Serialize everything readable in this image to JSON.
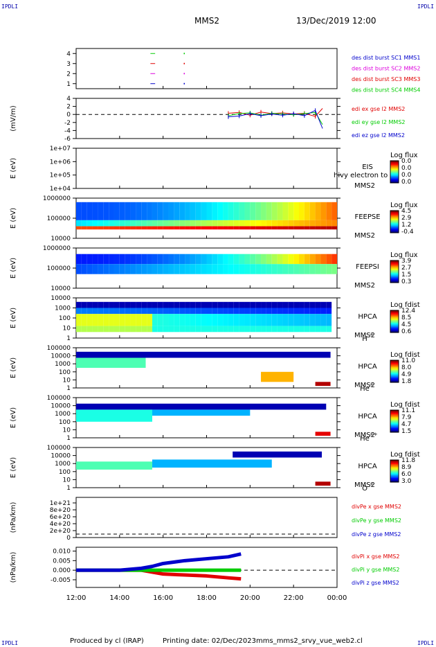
{
  "header": {
    "corner_label": "IPDLI",
    "spacecraft": "MMS2",
    "datetime": "13/Dec/2019 12:00"
  },
  "footer": {
    "produced_by": "Produced by cl (IRAP)",
    "printing_date": "Printing date: 02/Dec/2023",
    "filename": "mms_mms2_srvy_vue_web2.cl"
  },
  "colors": {
    "red": "#e00000",
    "green": "#00cc00",
    "blue": "#0000cc",
    "magenta": "#dd00dd"
  },
  "chart_data": [
    {
      "type": "line",
      "id": "burst",
      "ylim": [
        0.5,
        4.5
      ],
      "yticks": [
        "1",
        "2",
        "3",
        "4"
      ],
      "legend": [
        {
          "label": "des dist burst SC1 MMS1",
          "color": "#0000cc"
        },
        {
          "label": "des dist burst SC2 MMS2",
          "color": "#dd00dd"
        },
        {
          "label": "des dist burst SC3 MMS3",
          "color": "#e00000"
        },
        {
          "label": "des dist burst SC4 MMS4",
          "color": "#00cc00"
        }
      ],
      "series": [
        {
          "name": "des dist burst SC1 MMS1",
          "y": 1,
          "x": [
            "15:25",
            "15:38"
          ],
          "color": "#0000cc"
        },
        {
          "name": "des dist burst SC2 MMS2",
          "y": 2,
          "x": [
            "15:25",
            "15:38"
          ],
          "color": "#dd00dd"
        },
        {
          "name": "des dist burst SC3 MMS3",
          "y": 3,
          "x": [
            "15:25",
            "15:38"
          ],
          "color": "#e00000"
        },
        {
          "name": "des dist burst SC4 MMS4",
          "y": 4,
          "x": [
            "15:25",
            "15:38"
          ],
          "color": "#00cc00"
        }
      ]
    },
    {
      "type": "line",
      "id": "edi",
      "ylabel": "(mV/m)",
      "ylim": [
        -6,
        4
      ],
      "yticks": [
        "4",
        "2",
        "0",
        "-2",
        "-4",
        "-6"
      ],
      "legend": [
        {
          "label": "edi ex gse l2 MMS2",
          "color": "#e00000"
        },
        {
          "label": "edi ey gse l2 MMS2",
          "color": "#00cc00"
        },
        {
          "label": "edi ez gse l2 MMS2",
          "color": "#0000cc"
        }
      ],
      "x_range_hours": [
        18.75,
        23.4
      ],
      "series": [
        {
          "name": "edi ex gse l2 MMS2",
          "color": "#e00000",
          "x": [
            "19:00",
            "19:30",
            "20:00",
            "20:30",
            "21:00",
            "21:30",
            "22:00",
            "22:30",
            "23:00",
            "23:20"
          ],
          "y": [
            0.3,
            0.5,
            -0.2,
            0.6,
            0.2,
            0.4,
            0.1,
            0.3,
            -0.5,
            1.5
          ]
        },
        {
          "name": "edi ey gse l2 MMS2",
          "color": "#00cc00",
          "x": [
            "19:00",
            "19:30",
            "20:00",
            "20:30",
            "21:00",
            "21:30",
            "22:00",
            "22:30",
            "23:00",
            "23:20"
          ],
          "y": [
            -0.3,
            0.2,
            0.4,
            -0.2,
            0.3,
            0.1,
            -0.1,
            0.2,
            0.5,
            -2.5
          ]
        },
        {
          "name": "edi ez gse l2 MMS2",
          "color": "#0000cc",
          "x": [
            "19:00",
            "19:30",
            "20:00",
            "20:30",
            "21:00",
            "21:30",
            "22:00",
            "22:30",
            "23:00",
            "23:20"
          ],
          "y": [
            -0.6,
            -0.4,
            0.2,
            -0.3,
            0.1,
            -0.2,
            0.2,
            -0.3,
            1.0,
            -3.5
          ]
        }
      ]
    },
    {
      "type": "heatmap",
      "id": "eis",
      "ylabel": "E (eV)",
      "yticks": [
        "1e+07",
        "1e+06",
        "1e+05",
        "1e+04"
      ],
      "instrument": "EIS",
      "instrument_sc": "MMS2",
      "overlay_text": "hivy electron to",
      "colorbar_label": "Log flux",
      "colorbar_ticks": [
        "0.0",
        "0.0",
        "0.0",
        "0.0"
      ]
    },
    {
      "type": "heatmap",
      "id": "feepse",
      "ylabel": "E (eV)",
      "yticks": [
        "1000000",
        "100000",
        "10000"
      ],
      "instrument": "FEEPSE",
      "instrument_sc": "MMS2",
      "colorbar_label": "Log flux",
      "colorbar_ticks": [
        "4.5",
        "2.9",
        "1.2",
        "-0.4"
      ]
    },
    {
      "type": "heatmap",
      "id": "feepsi",
      "ylabel": "E (eV)",
      "yticks": [
        "1000000",
        "100000",
        "10000"
      ],
      "instrument": "FEEPSI",
      "instrument_sc": "MMS2",
      "colorbar_label": "Log flux",
      "colorbar_ticks": [
        "3.9",
        "2.7",
        "1.5",
        "0.3"
      ]
    },
    {
      "type": "heatmap",
      "id": "hpca_h",
      "ylabel": "E (eV)",
      "yticks": [
        "10000",
        "1000",
        "100",
        "10",
        "1"
      ],
      "instrument": "HPCA",
      "instrument_sc": "MMS2",
      "species": "H",
      "charge": "+",
      "colorbar_label": "Log fdist",
      "colorbar_ticks": [
        "12.4",
        "8.5",
        "4.5",
        "0.6"
      ]
    },
    {
      "type": "heatmap",
      "id": "hpca_he1",
      "ylabel": "E (eV)",
      "yticks": [
        "100000",
        "10000",
        "1000",
        "100",
        "10",
        "1"
      ],
      "instrument": "HPCA",
      "instrument_sc": "MMS2",
      "species": "He",
      "charge": "+",
      "colorbar_label": "Log fdist",
      "colorbar_ticks": [
        "11.0",
        "8.0",
        "4.9",
        "1.8"
      ]
    },
    {
      "type": "heatmap",
      "id": "hpca_he2",
      "ylabel": "E (eV)",
      "yticks": [
        "100000",
        "10000",
        "1000",
        "100",
        "10",
        "1"
      ],
      "instrument": "HPCA",
      "instrument_sc": "MMS2",
      "species": "He",
      "charge": "++",
      "colorbar_label": "Log fdist",
      "colorbar_ticks": [
        "11.1",
        "7.9",
        "4.7",
        "1.5"
      ]
    },
    {
      "type": "heatmap",
      "id": "hpca_o",
      "ylabel": "E (eV)",
      "yticks": [
        "100000",
        "10000",
        "1000",
        "100",
        "10",
        "1"
      ],
      "instrument": "HPCA",
      "instrument_sc": "MMS2",
      "species": "O",
      "charge": "+",
      "colorbar_label": "Log fdist",
      "colorbar_ticks": [
        "11.8",
        "8.9",
        "6.0",
        "3.0"
      ]
    },
    {
      "type": "line",
      "id": "divpe",
      "ylabel": "(nPa/km)",
      "yticks": [
        "1e+21",
        "8e+20",
        "6e+20",
        "4e+20",
        "2e+20",
        "0"
      ],
      "legend": [
        {
          "label": "divPe x gse MMS2",
          "color": "#e00000"
        },
        {
          "label": "divPe y gse MMS2",
          "color": "#00cc00"
        },
        {
          "label": "divPe z gse MMS2",
          "color": "#0000cc"
        }
      ],
      "series": []
    },
    {
      "type": "line",
      "id": "divpi",
      "ylabel": "(nPa/km)",
      "ylim": [
        -0.009,
        0.012
      ],
      "yticks": [
        "0.010",
        "0.005",
        "0.000",
        "-0.005"
      ],
      "legend": [
        {
          "label": "divPi x gse MMS2",
          "color": "#e00000"
        },
        {
          "label": "divPi y gse MMS2",
          "color": "#00cc00"
        },
        {
          "label": "divPi z gse MMS2",
          "color": "#0000cc"
        }
      ],
      "series": [
        {
          "name": "divPi x gse MMS2",
          "color": "#e00000",
          "x": [
            "12:00",
            "14:00",
            "15:00",
            "15:30",
            "16:00",
            "17:00",
            "18:00",
            "19:00",
            "19:35"
          ],
          "y": [
            0.0,
            0.0,
            0.0,
            -0.001,
            -0.002,
            -0.0025,
            -0.003,
            -0.004,
            -0.0045
          ]
        },
        {
          "name": "divPi y gse MMS2",
          "color": "#00cc00",
          "x": [
            "12:00",
            "14:00",
            "15:00",
            "15:30",
            "16:00",
            "17:00",
            "18:00",
            "19:00",
            "19:35"
          ],
          "y": [
            0.0,
            0.0,
            0.0,
            0.0,
            0.0,
            0.0,
            0.0,
            0.0,
            0.0
          ]
        },
        {
          "name": "divPi z gse MMS2",
          "color": "#0000cc",
          "x": [
            "12:00",
            "14:00",
            "15:00",
            "15:30",
            "16:00",
            "17:00",
            "18:00",
            "19:00",
            "19:35"
          ],
          "y": [
            0.0,
            0.0,
            0.001,
            0.002,
            0.0035,
            0.005,
            0.006,
            0.007,
            0.0085
          ]
        }
      ]
    }
  ],
  "xaxis": {
    "ticks": [
      "12:00",
      "14:00",
      "16:00",
      "18:00",
      "20:00",
      "22:00",
      "00:00"
    ],
    "range_hours": [
      12,
      24
    ]
  }
}
